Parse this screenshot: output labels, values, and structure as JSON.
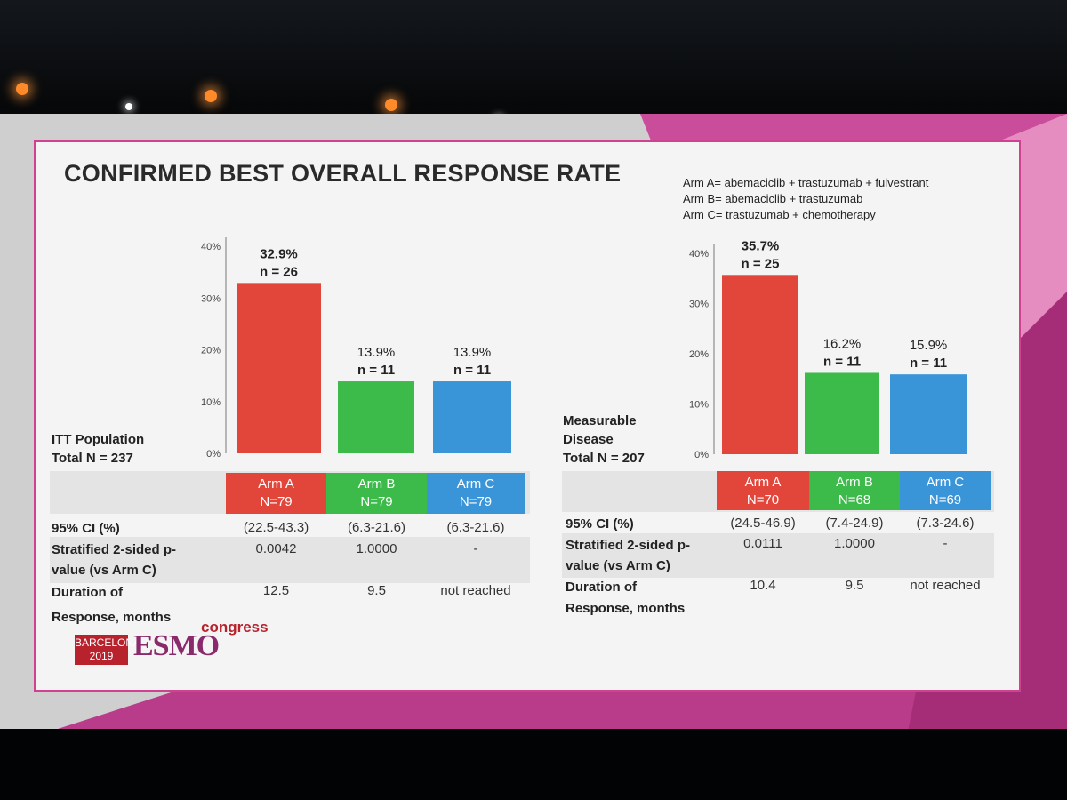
{
  "slide": {
    "title": "CONFIRMED BEST OVERALL RESPONSE RATE",
    "legend": [
      "Arm A= abemaciclib + trastuzumab + fulvestrant",
      "Arm B= abemaciclib + trastuzumab",
      "Arm C= trastuzumab + chemotherapy"
    ],
    "row_labels": {
      "ci": "95% CI (%)",
      "pvalue_1": "Stratified 2-sided p-",
      "pvalue_2": "value (vs Arm C)",
      "duration_1": "Duration of",
      "duration_2": "Response, months"
    },
    "logo": {
      "city": "BARCELONA",
      "year": "2019",
      "brand": "ESMO",
      "suffix": "congress"
    }
  },
  "colors": {
    "arm_a": "#e2453a",
    "arm_b": "#3dbb4a",
    "arm_c": "#3a95d8",
    "accent": "#d0428f"
  },
  "chart_data": [
    {
      "type": "bar",
      "population_label": [
        "ITT Population",
        "Total N = 237"
      ],
      "categories": [
        "Arm A",
        "Arm B",
        "Arm C"
      ],
      "values": [
        32.9,
        13.9,
        13.9
      ],
      "value_labels": [
        "32.9%",
        "13.9%",
        "13.9%"
      ],
      "n_labels": [
        "n = 26",
        "n = 11",
        "n = 11"
      ],
      "arm_n": [
        "N=79",
        "N=79",
        "N=79"
      ],
      "yticks": [
        "0%",
        "10%",
        "20%",
        "30%",
        "40%"
      ],
      "ylim": [
        0,
        40
      ],
      "table": {
        "ci": [
          "(22.5-43.3)",
          "(6.3-21.6)",
          "(6.3-21.6)"
        ],
        "pvalue": [
          "0.0042",
          "1.0000",
          "-"
        ],
        "duration": [
          "12.5",
          "9.5",
          "not reached"
        ]
      }
    },
    {
      "type": "bar",
      "population_label": [
        "Measurable",
        "Disease",
        "Total N = 207"
      ],
      "categories": [
        "Arm A",
        "Arm B",
        "Arm C"
      ],
      "values": [
        35.7,
        16.2,
        15.9
      ],
      "value_labels": [
        "35.7%",
        "16.2%",
        "15.9%"
      ],
      "n_labels": [
        "n = 25",
        "n = 11",
        "n = 11"
      ],
      "arm_n": [
        "N=70",
        "N=68",
        "N=69"
      ],
      "yticks": [
        "0%",
        "10%",
        "20%",
        "30%",
        "40%"
      ],
      "ylim": [
        0,
        40
      ],
      "table": {
        "ci": [
          "(24.5-46.9)",
          "(7.4-24.9)",
          "(7.3-24.6)"
        ],
        "pvalue": [
          "0.0111",
          "1.0000",
          "-"
        ],
        "duration": [
          "10.4",
          "9.5",
          "not reached"
        ]
      }
    }
  ]
}
